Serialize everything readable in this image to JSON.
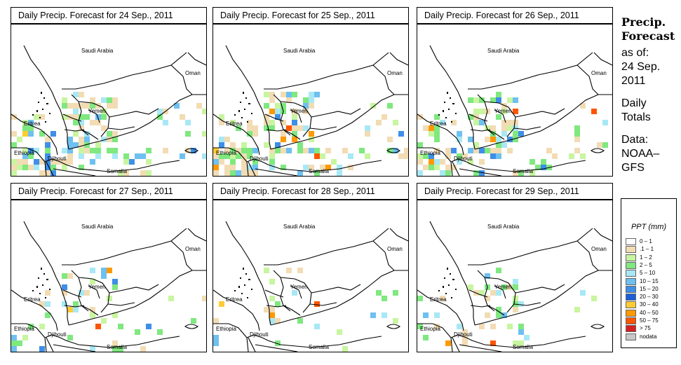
{
  "panels": [
    {
      "title": "Daily Precip. Forecast for  24 Sep., 2011"
    },
    {
      "title": "Daily Precip. Forecast for  25 Sep., 2011"
    },
    {
      "title": "Daily Precip. Forecast for  26 Sep., 2011"
    },
    {
      "title": "Daily Precip. Forecast for  27 Sep., 2011"
    },
    {
      "title": "Daily Precip. Forecast for  28 Sep., 2011"
    },
    {
      "title": "Daily Precip. Forecast for  29 Sep., 2011"
    }
  ],
  "map_labels": {
    "saudi": "Saudi Arabia",
    "oman": "Oman",
    "yemen": "Yemen",
    "eritrea": "Eritrea",
    "ethiopia": "Ethiopia",
    "djibouti": "Djibouti",
    "somalia": "Somalia"
  },
  "side": {
    "heading1": "Precip.",
    "heading2": "Forecast",
    "asof1": "as of:",
    "asof2": "24 Sep.",
    "asof3": "2011",
    "daily1": "Daily",
    "daily2": "Totals",
    "data1": "Data:",
    "data2": "NOAA–",
    "data3": "GFS"
  },
  "legend": {
    "title": "PPT (mm)",
    "items": [
      {
        "label": "0 – 1",
        "color": "#ffffff"
      },
      {
        "label": ".1 – 1",
        "color": "#f2dcb4"
      },
      {
        "label": "1 – 2",
        "color": "#c8f5a0"
      },
      {
        "label": "2 – 5",
        "color": "#7fe87f"
      },
      {
        "label": "5 – 10",
        "color": "#a8e8f5"
      },
      {
        "label": "10 – 15",
        "color": "#6ec0f0"
      },
      {
        "label": "15 – 20",
        "color": "#3f8ee8"
      },
      {
        "label": "20 – 30",
        "color": "#1b5ed8"
      },
      {
        "label": "30 – 40",
        "color": "#ffcc33"
      },
      {
        "label": "40 – 50",
        "color": "#ff9900"
      },
      {
        "label": "50 – 75",
        "color": "#ff5500"
      },
      {
        "label": "> 75",
        "color": "#d42020"
      },
      {
        "label": "nodata",
        "color": "#c8c8c8"
      }
    ]
  }
}
